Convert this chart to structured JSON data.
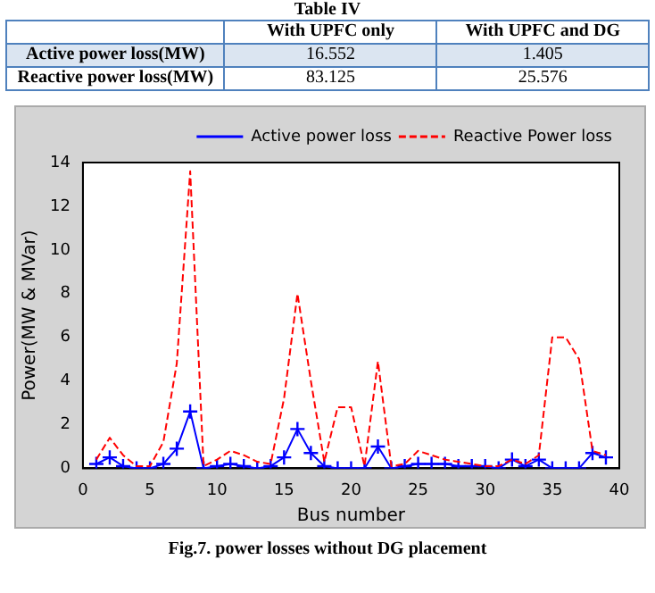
{
  "chart_data": {
    "type": "line",
    "title": "Fig.7. power losses without DG placement",
    "xlabel": "Bus number",
    "ylabel": "Power(MW & MVar)",
    "annotations": [
      "Table IV",
      "With UPFC only",
      "With UPFC and DG",
      "Active power loss(MW)",
      "16.552",
      "1.405",
      "Reactive power loss(MW)",
      "83.125",
      "25.576"
    ],
    "x": [
      1,
      2,
      3,
      4,
      5,
      6,
      7,
      8,
      9,
      10,
      11,
      12,
      13,
      14,
      15,
      16,
      17,
      18,
      19,
      20,
      21,
      22,
      23,
      24,
      25,
      26,
      27,
      28,
      29,
      30,
      31,
      32,
      33,
      34,
      35,
      36,
      37,
      38,
      39
    ],
    "series": [
      {
        "name": "Active power loss",
        "color": "#0000ff",
        "marker": "cross",
        "line_style": "solid",
        "values": [
          0.2,
          0.5,
          0.1,
          0,
          0,
          0.2,
          0.9,
          2.6,
          0,
          0.1,
          0.2,
          0.1,
          0,
          0.1,
          0.5,
          1.8,
          0.7,
          0.1,
          0,
          0,
          0,
          1.0,
          0,
          0.1,
          0.2,
          0.2,
          0.2,
          0.1,
          0.1,
          0.1,
          0,
          0.4,
          0.1,
          0.4,
          0,
          0,
          0,
          0.7,
          0.5
        ]
      },
      {
        "name": "Reactive Power loss",
        "color": "#ff0000",
        "marker": "none",
        "line_style": "dashed",
        "values": [
          0.4,
          1.4,
          0.6,
          0.1,
          0.1,
          1.2,
          4.8,
          13.6,
          0.1,
          0.4,
          0.8,
          0.6,
          0.3,
          0.2,
          3.2,
          8.0,
          4.0,
          0.3,
          2.8,
          2.8,
          0.1,
          4.9,
          0.1,
          0.2,
          0.8,
          0.6,
          0.4,
          0.3,
          0.2,
          0.1,
          0.1,
          0.4,
          0.2,
          0.6,
          6.0,
          6.0,
          5.0,
          0.8,
          0.6
        ]
      }
    ],
    "xlim": [
      0,
      40
    ],
    "xticks": [
      0,
      5,
      10,
      15,
      20,
      25,
      30,
      35,
      40
    ],
    "ylim": [
      0,
      14
    ],
    "yticks": [
      0,
      2,
      4,
      6,
      8,
      10,
      12,
      14
    ],
    "legend": "top right",
    "grid": false
  }
}
